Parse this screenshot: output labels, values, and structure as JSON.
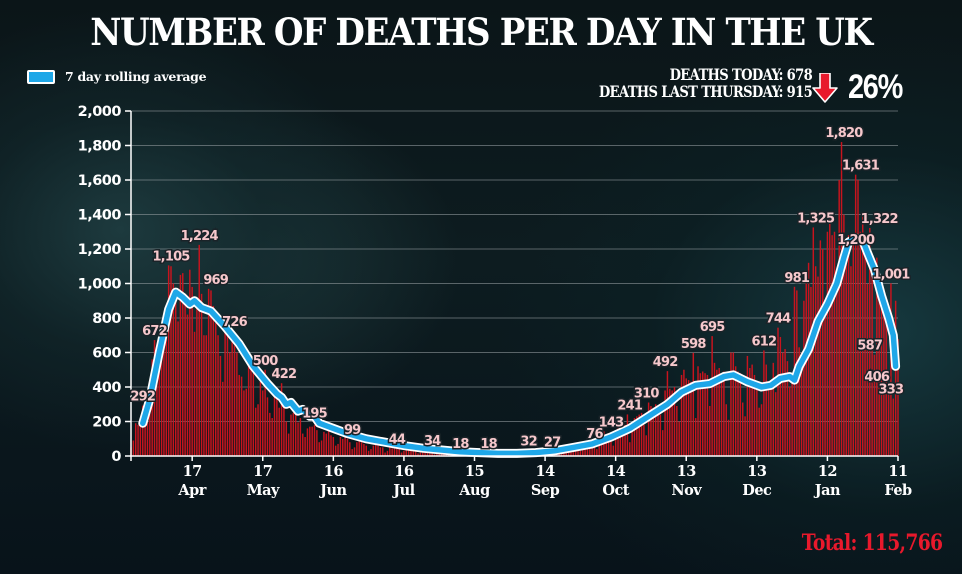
{
  "header": {
    "title": "NUMBER OF DEATHS PER DAY IN THE UK"
  },
  "legend": {
    "label": "7 day rolling average",
    "swatch_color": "#1ea7e8"
  },
  "stats": {
    "deaths_today": "DEATHS TODAY: 678",
    "deaths_last_thursday": "DEATHS LAST THURSDAY: 915",
    "change_icon": "arrow-down-icon",
    "change_pct": "26%",
    "arrow_color": "#e8192c"
  },
  "footer": {
    "total": "Total: 115,766",
    "total_color": "#e8192c"
  },
  "chart_data": {
    "type": "bar",
    "title": "NUMBER OF DEATHS PER DAY IN THE UK",
    "xlabel": "",
    "ylabel": "",
    "ylim": [
      0,
      2000
    ],
    "grid": true,
    "legend_position": "top-left",
    "x_unit": "days since 22 Mar",
    "xlim": [
      0,
      326
    ],
    "y_ticks": [
      {
        "value": 0,
        "label": "0"
      },
      {
        "value": 200,
        "label": "200"
      },
      {
        "value": 400,
        "label": "400"
      },
      {
        "value": 600,
        "label": "600"
      },
      {
        "value": 800,
        "label": "800"
      },
      {
        "value": 1000,
        "label": "1,000"
      },
      {
        "value": 1200,
        "label": "1,200"
      },
      {
        "value": 1400,
        "label": "1,400"
      },
      {
        "value": 1600,
        "label": "1,600"
      },
      {
        "value": 1800,
        "label": "1,800"
      },
      {
        "value": 2000,
        "label": "2,000"
      }
    ],
    "x_ticks": [
      {
        "day": 26,
        "day_label": "17",
        "month_label": "Apr"
      },
      {
        "day": 56,
        "day_label": "17",
        "month_label": "May"
      },
      {
        "day": 86,
        "day_label": "16",
        "month_label": "Jun"
      },
      {
        "day": 116,
        "day_label": "16",
        "month_label": "Jul"
      },
      {
        "day": 146,
        "day_label": "15",
        "month_label": "Aug"
      },
      {
        "day": 176,
        "day_label": "14",
        "month_label": "Sep"
      },
      {
        "day": 206,
        "day_label": "14",
        "month_label": "Oct"
      },
      {
        "day": 236,
        "day_label": "13",
        "month_label": "Nov"
      },
      {
        "day": 266,
        "day_label": "13",
        "month_label": "Dec"
      },
      {
        "day": 296,
        "day_label": "12",
        "month_label": "Jan"
      },
      {
        "day": 326,
        "day_label": "11",
        "month_label": "Feb"
      }
    ],
    "series": [
      {
        "name": "Daily deaths",
        "kind": "bar",
        "color": "#c8141e",
        "values": [
          50,
          90,
          190,
          180,
          200,
          292,
          260,
          300,
          420,
          560,
          672,
          620,
          650,
          700,
          740,
          820,
          1105,
          1100,
          1000,
          900,
          780,
          1050,
          1060,
          880,
          820,
          1080,
          980,
          720,
          870,
          1224,
          940,
          700,
          700,
          969,
          960,
          870,
          770,
          700,
          580,
          430,
          800,
          760,
          600,
          726,
          640,
          600,
          470,
          460,
          380,
          390,
          560,
          540,
          480,
          280,
          300,
          430,
          380,
          500,
          340,
          250,
          220,
          370,
          340,
          280,
          422,
          300,
          200,
          130,
          240,
          250,
          270,
          195,
          220,
          130,
          110,
          160,
          170,
          170,
          180,
          150,
          80,
          90,
          140,
          130,
          150,
          120,
          110,
          60,
          70,
          110,
          99,
          110,
          100,
          80,
          40,
          50,
          80,
          90,
          80,
          70,
          60,
          30,
          40,
          60,
          70,
          60,
          50,
          50,
          20,
          30,
          50,
          44,
          60,
          50,
          40,
          20,
          30,
          40,
          50,
          40,
          35,
          30,
          15,
          20,
          34,
          40,
          30,
          25,
          20,
          10,
          15,
          30,
          25,
          20,
          15,
          10,
          8,
          12,
          18,
          20,
          18,
          15,
          10,
          6,
          10,
          18,
          15,
          14,
          12,
          8,
          5,
          10,
          18,
          12,
          12,
          10,
          6,
          5,
          10,
          14,
          12,
          14,
          12,
          8,
          5,
          12,
          18,
          16,
          20,
          32,
          14,
          8,
          20,
          25,
          27,
          30,
          20,
          10,
          27,
          30,
          32,
          35,
          40,
          25,
          15,
          40,
          50,
          55,
          60,
          60,
          50,
          30,
          65,
          76,
          70,
          80,
          70,
          60,
          40,
          90,
          100,
          143,
          120,
          130,
          110,
          60,
          140,
          160,
          150,
          170,
          180,
          241,
          80,
          170,
          220,
          230,
          240,
          250,
          180,
          120,
          310,
          290,
          280,
          300,
          290,
          240,
          150,
          380,
          492,
          390,
          380,
          400,
          290,
          200,
          470,
          500,
          450,
          440,
          430,
          598,
          220,
          520,
          480,
          490,
          480,
          470,
          290,
          695,
          540,
          500,
          510,
          450,
          490,
          300,
          210,
          600,
          600,
          520,
          490,
          480,
          310,
          230,
          580,
          510,
          530,
          470,
          420,
          280,
          300,
          612,
          530,
          430,
          400,
          540,
          370,
          744,
          690,
          600,
          620,
          550,
          400,
          460,
          981,
          960,
          630,
          600,
          900,
          1000,
          1120,
          980,
          1325,
          1100,
          1040,
          1250,
          1200,
          800,
          1300,
          1400,
          1280,
          1300,
          1050,
          1600,
          1820,
          1400,
          1200,
          1280,
          1100,
          1250,
          1631,
          1600,
          1300,
          1400,
          1200,
          1000,
          1322,
          1100,
          587,
          1150,
          970,
          900,
          880,
          900,
          406,
          1001,
          333,
          900,
          678
        ]
      },
      {
        "name": "7 day rolling average",
        "kind": "line",
        "color": "#1ea7e8",
        "points": [
          [
            5,
            190
          ],
          [
            8,
            330
          ],
          [
            12,
            600
          ],
          [
            16,
            850
          ],
          [
            19,
            950
          ],
          [
            22,
            920
          ],
          [
            25,
            880
          ],
          [
            27,
            900
          ],
          [
            30,
            860
          ],
          [
            34,
            840
          ],
          [
            40,
            750
          ],
          [
            46,
            650
          ],
          [
            52,
            520
          ],
          [
            58,
            420
          ],
          [
            62,
            360
          ],
          [
            64,
            340
          ],
          [
            66,
            300
          ],
          [
            68,
            310
          ],
          [
            71,
            260
          ],
          [
            73,
            270
          ],
          [
            76,
            230
          ],
          [
            78,
            230
          ],
          [
            80,
            190
          ],
          [
            86,
            160
          ],
          [
            92,
            130
          ],
          [
            100,
            100
          ],
          [
            108,
            80
          ],
          [
            116,
            60
          ],
          [
            124,
            45
          ],
          [
            132,
            35
          ],
          [
            140,
            25
          ],
          [
            148,
            20
          ],
          [
            156,
            15
          ],
          [
            164,
            15
          ],
          [
            172,
            20
          ],
          [
            180,
            30
          ],
          [
            188,
            50
          ],
          [
            196,
            70
          ],
          [
            204,
            110
          ],
          [
            212,
            160
          ],
          [
            220,
            230
          ],
          [
            228,
            300
          ],
          [
            234,
            370
          ],
          [
            240,
            410
          ],
          [
            246,
            420
          ],
          [
            252,
            460
          ],
          [
            256,
            470
          ],
          [
            262,
            430
          ],
          [
            268,
            400
          ],
          [
            272,
            410
          ],
          [
            276,
            450
          ],
          [
            280,
            460
          ],
          [
            282,
            440
          ],
          [
            284,
            520
          ],
          [
            288,
            620
          ],
          [
            292,
            780
          ],
          [
            296,
            880
          ],
          [
            300,
            1000
          ],
          [
            303,
            1150
          ],
          [
            305,
            1240
          ],
          [
            308,
            1265
          ],
          [
            311,
            1250
          ],
          [
            313,
            1180
          ],
          [
            316,
            1080
          ],
          [
            319,
            930
          ],
          [
            322,
            800
          ],
          [
            324,
            700
          ],
          [
            325,
            520
          ]
        ]
      }
    ],
    "annotations": [
      {
        "day": 5,
        "value": 292,
        "label": "292"
      },
      {
        "day": 10,
        "value": 672,
        "label": "672"
      },
      {
        "day": 17,
        "value": 1105,
        "label": "1,105"
      },
      {
        "day": 29,
        "value": 1224,
        "label": "1,224"
      },
      {
        "day": 36,
        "value": 969,
        "label": "969"
      },
      {
        "day": 44,
        "value": 726,
        "label": "726"
      },
      {
        "day": 57,
        "value": 500,
        "label": "500"
      },
      {
        "day": 65,
        "value": 422,
        "label": "422"
      },
      {
        "day": 78,
        "value": 195,
        "label": "195"
      },
      {
        "day": 94,
        "value": 99,
        "label": "99"
      },
      {
        "day": 113,
        "value": 44,
        "label": "44"
      },
      {
        "day": 128,
        "value": 34,
        "label": "34"
      },
      {
        "day": 140,
        "value": 18,
        "label": "18"
      },
      {
        "day": 152,
        "value": 18,
        "label": "18"
      },
      {
        "day": 169,
        "value": 32,
        "label": "32"
      },
      {
        "day": 179,
        "value": 27,
        "label": "27"
      },
      {
        "day": 197,
        "value": 76,
        "label": "76"
      },
      {
        "day": 204,
        "value": 143,
        "label": "143"
      },
      {
        "day": 212,
        "value": 241,
        "label": "241"
      },
      {
        "day": 219,
        "value": 310,
        "label": "310"
      },
      {
        "day": 227,
        "value": 492,
        "label": "492"
      },
      {
        "day": 239,
        "value": 598,
        "label": "598"
      },
      {
        "day": 247,
        "value": 695,
        "label": "695"
      },
      {
        "day": 269,
        "value": 612,
        "label": "612"
      },
      {
        "day": 275,
        "value": 744,
        "label": "744"
      },
      {
        "day": 283,
        "value": 981,
        "label": "981"
      },
      {
        "day": 291,
        "value": 1325,
        "label": "1,325"
      },
      {
        "day": 303,
        "value": 1820,
        "label": "1,820"
      },
      {
        "day": 310,
        "value": 1631,
        "label": "1,631"
      },
      {
        "day": 308,
        "value": 1200,
        "label": "1,200"
      },
      {
        "day": 318,
        "value": 1322,
        "label": "1,322"
      },
      {
        "day": 314,
        "value": 587,
        "label": "587"
      },
      {
        "day": 317,
        "value": 406,
        "label": "406"
      },
      {
        "day": 323,
        "value": 1001,
        "label": "1,001"
      },
      {
        "day": 323,
        "value": 333,
        "label": "333"
      }
    ]
  }
}
